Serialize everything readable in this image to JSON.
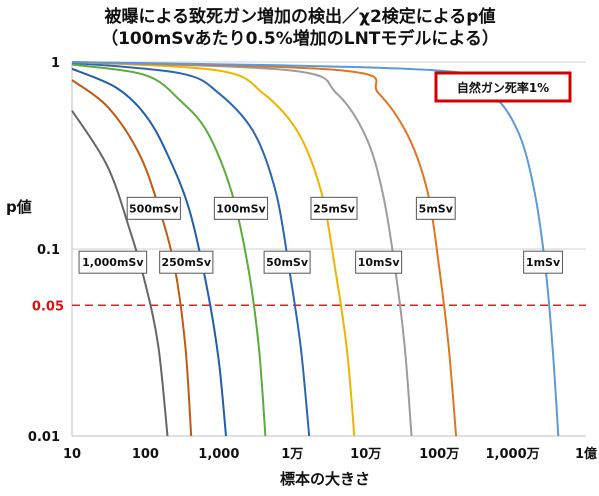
{
  "chart_data": {
    "type": "line",
    "title_line1": "被曝による致死ガン増加の検出／χ2検定によるp値",
    "title_line2": "（100mSvあたり0.5%増加のLNTモデルによる）",
    "xlabel": "標本の大きさ",
    "ylabel": "p値",
    "x_scale": "log",
    "y_scale": "log",
    "xlim": [
      10,
      100000000
    ],
    "ylim": [
      0.01,
      1
    ],
    "x_ticks": [
      {
        "value": 10,
        "label": "10"
      },
      {
        "value": 100,
        "label": "100"
      },
      {
        "value": 1000,
        "label": "1,000"
      },
      {
        "value": 10000,
        "label": "1万"
      },
      {
        "value": 100000,
        "label": "10万"
      },
      {
        "value": 1000000,
        "label": "100万"
      },
      {
        "value": 10000000,
        "label": "1,000万"
      },
      {
        "value": 100000000,
        "label": "1億"
      }
    ],
    "y_ticks": [
      {
        "value": 1,
        "label": "1"
      },
      {
        "value": 0.1,
        "label": "0.1"
      },
      {
        "value": 0.01,
        "label": "0.01"
      }
    ],
    "threshold": {
      "value": 0.05,
      "label": "0.05",
      "color": "#e02020"
    },
    "annotation": {
      "text": "自然ガン死率1%",
      "border_color": "#d40000"
    },
    "series": [
      {
        "name": "1,000mSv",
        "color": "#666666",
        "points": [
          [
            10,
            0.55
          ],
          [
            30,
            0.28
          ],
          [
            60,
            0.13
          ],
          [
            100,
            0.065
          ],
          [
            150,
            0.03
          ],
          [
            200,
            0.01
          ]
        ],
        "label_at": [
          36,
          0.085
        ]
      },
      {
        "name": "500mSv",
        "color": "#c05a12",
        "points": [
          [
            10,
            0.8
          ],
          [
            30,
            0.58
          ],
          [
            80,
            0.33
          ],
          [
            150,
            0.17
          ],
          [
            250,
            0.08
          ],
          [
            350,
            0.03
          ],
          [
            420,
            0.01
          ]
        ],
        "label_at": [
          130,
          0.165
        ]
      },
      {
        "name": "250mSv",
        "color": "#1f5fa8",
        "points": [
          [
            10,
            0.92
          ],
          [
            40,
            0.73
          ],
          [
            100,
            0.52
          ],
          [
            200,
            0.32
          ],
          [
            400,
            0.16
          ],
          [
            700,
            0.06
          ],
          [
            1000,
            0.025
          ],
          [
            1250,
            0.01
          ]
        ],
        "label_at": [
          360,
          0.085
        ]
      },
      {
        "name": "100mSv",
        "color": "#5aab3c",
        "points": [
          [
            10,
            0.97
          ],
          [
            100,
            0.85
          ],
          [
            300,
            0.62
          ],
          [
            700,
            0.42
          ],
          [
            1500,
            0.2
          ],
          [
            2500,
            0.08
          ],
          [
            3500,
            0.03
          ],
          [
            4300,
            0.01
          ]
        ],
        "label_at": [
          2000,
          0.165
        ]
      },
      {
        "name": "50mSv",
        "color": "#2b66b2",
        "points": [
          [
            10,
            0.99
          ],
          [
            300,
            0.87
          ],
          [
            1000,
            0.68
          ],
          [
            3000,
            0.42
          ],
          [
            6000,
            0.2
          ],
          [
            9000,
            0.08
          ],
          [
            13000,
            0.03
          ],
          [
            17000,
            0.01
          ]
        ],
        "label_at": [
          8500,
          0.085
        ]
      },
      {
        "name": "25mSv",
        "color": "#f0b400",
        "points": [
          [
            10,
            1.0
          ],
          [
            1000,
            0.9
          ],
          [
            4000,
            0.68
          ],
          [
            12000,
            0.42
          ],
          [
            25000,
            0.2
          ],
          [
            38000,
            0.08
          ],
          [
            55000,
            0.03
          ],
          [
            70000,
            0.01
          ]
        ],
        "label_at": [
          37000,
          0.165
        ]
      },
      {
        "name": "10mSv",
        "color": "#9c9c9c",
        "points": [
          [
            10,
            1.0
          ],
          [
            10000,
            0.9
          ],
          [
            40000,
            0.68
          ],
          [
            100000,
            0.4
          ],
          [
            170000,
            0.2
          ],
          [
            250000,
            0.08
          ],
          [
            340000,
            0.03
          ],
          [
            420000,
            0.01
          ]
        ],
        "label_at": [
          150000,
          0.085
        ]
      },
      {
        "name": "5mSv",
        "color": "#e2731f",
        "points": [
          [
            10,
            1.0
          ],
          [
            50000,
            0.9
          ],
          [
            150000,
            0.68
          ],
          [
            380000,
            0.4
          ],
          [
            700000,
            0.2
          ],
          [
            1000000,
            0.08
          ],
          [
            1350000,
            0.03
          ],
          [
            1700000,
            0.01
          ]
        ],
        "label_at": [
          900000,
          0.165
        ]
      },
      {
        "name": "1mSv",
        "color": "#5b9bd5",
        "points": [
          [
            10,
            1.0
          ],
          [
            1000000,
            0.9
          ],
          [
            5000000,
            0.68
          ],
          [
            12000000,
            0.42
          ],
          [
            20000000,
            0.2
          ],
          [
            28000000,
            0.08
          ],
          [
            35000000,
            0.03
          ],
          [
            42000000,
            0.01
          ]
        ],
        "label_at": [
          26000000,
          0.085
        ]
      }
    ]
  }
}
